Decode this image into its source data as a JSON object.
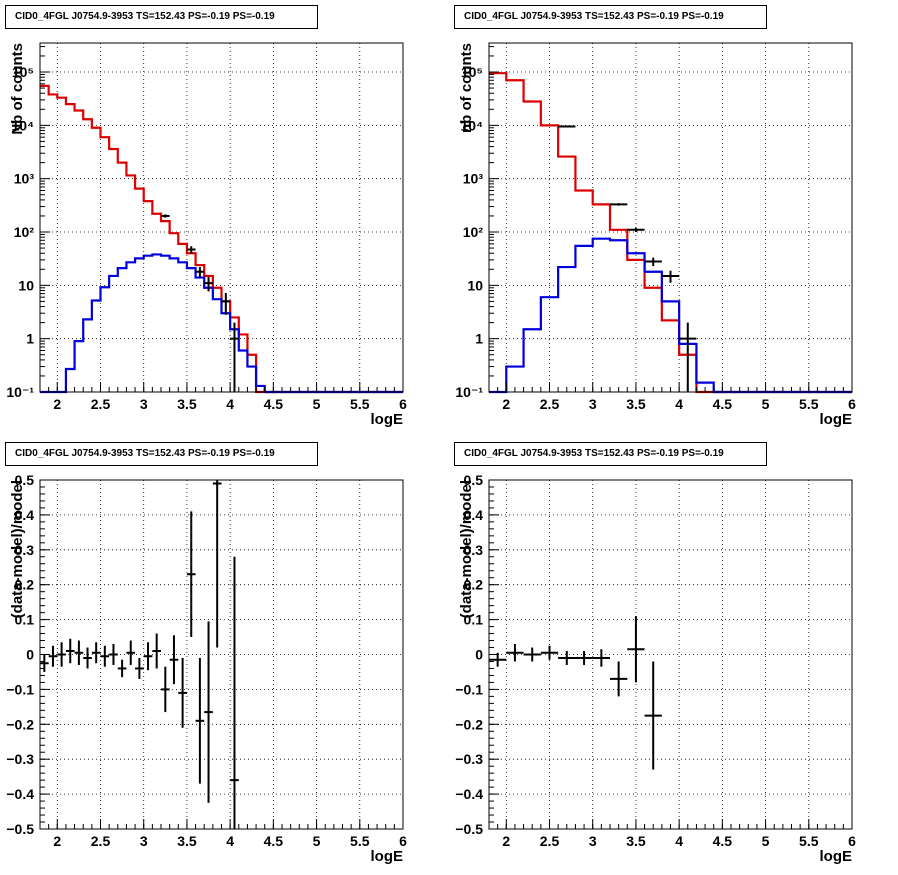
{
  "colors": {
    "model": "#dd0000",
    "source": "#0000dd",
    "data": "#000000",
    "grid": "#000000"
  },
  "chart_data": [
    {
      "type": "histogram",
      "title": "CID0_4FGL J0754.9-3953 TS=152.43 PS=-0.19 PS=-0.19",
      "xlabel": "logE",
      "ylabel": "Nb of counts",
      "xlim": [
        1.8,
        6.0
      ],
      "ylim": [
        0.1,
        350000
      ],
      "yscale": "log",
      "grid": true,
      "xticks": [
        "2",
        "2.5",
        "3",
        "3.5",
        "4",
        "4.5",
        "5",
        "5.5",
        "6"
      ],
      "yticks": [
        "10⁻¹",
        "1",
        "10",
        "10²",
        "10³",
        "10⁴",
        "10⁵"
      ],
      "bin_edges": [
        1.8,
        1.9,
        2.0,
        2.1,
        2.2,
        2.3,
        2.4,
        2.5,
        2.6,
        2.7,
        2.8,
        2.9,
        3.0,
        3.1,
        3.2,
        3.3,
        3.4,
        3.5,
        3.6,
        3.7,
        3.8,
        3.9,
        4.0,
        4.1,
        4.2,
        4.3,
        4.4,
        4.5,
        4.6,
        4.7,
        4.8,
        4.9,
        5.0,
        5.1,
        5.2,
        5.3,
        5.4,
        5.5,
        5.6,
        5.7,
        5.8,
        5.9,
        6.0
      ],
      "series": [
        {
          "name": "total model",
          "color": "#dd0000",
          "values": [
            55000,
            38000,
            33000,
            25000,
            19000,
            13000,
            9000,
            6000,
            3600,
            2000,
            1150,
            650,
            380,
            220,
            160,
            95,
            60,
            40,
            24,
            15,
            9,
            5,
            2.5,
            1.2,
            0.5,
            0.1,
            0.1,
            0.1,
            0.1,
            0.1,
            0.1,
            0.1,
            0.1,
            0.1,
            0.1,
            0.1,
            0.1,
            0.1,
            0.1,
            0.1,
            0.1,
            0.1
          ]
        },
        {
          "name": "source model",
          "color": "#0000dd",
          "values": [
            0.1,
            0.1,
            0.1,
            0.27,
            0.9,
            2.3,
            5.2,
            9.2,
            15,
            21,
            27,
            32,
            36,
            38,
            36,
            32,
            27,
            21,
            14,
            9,
            5.5,
            3,
            1.5,
            0.6,
            0.3,
            0.13,
            0.1,
            0.1,
            0.1,
            0.1,
            0.1,
            0.1,
            0.1,
            0.1,
            0.1,
            0.1,
            0.1,
            0.1,
            0.1,
            0.1,
            0.1,
            0.1
          ]
        }
      ],
      "data_points": [
        {
          "x": 3.25,
          "y": 200,
          "xerr": 0.05,
          "yerr_lo": 14,
          "yerr_hi": 14
        },
        {
          "x": 3.55,
          "y": 47,
          "xerr": 0.05,
          "yerr_lo": 7,
          "yerr_hi": 7
        },
        {
          "x": 3.65,
          "y": 18,
          "xerr": 0.05,
          "yerr_lo": 4,
          "yerr_hi": 4
        },
        {
          "x": 3.75,
          "y": 11,
          "xerr": 0.05,
          "yerr_lo": 3.3,
          "yerr_hi": 3.3
        },
        {
          "x": 3.95,
          "y": 5,
          "xerr": 0.05,
          "yerr_lo": 2.2,
          "yerr_hi": 2.2
        },
        {
          "x": 4.05,
          "y": 1,
          "xerr": 0.05,
          "yerr_lo": 0.95,
          "yerr_hi": 1
        }
      ]
    },
    {
      "type": "histogram",
      "title": "CID0_4FGL J0754.9-3953 TS=152.43 PS=-0.19 PS=-0.19",
      "xlabel": "logE",
      "ylabel": "nb of counts",
      "xlim": [
        1.8,
        6.0
      ],
      "ylim": [
        0.1,
        350000
      ],
      "yscale": "log",
      "grid": true,
      "xticks": [
        "2",
        "2.5",
        "3",
        "3.5",
        "4",
        "4.5",
        "5",
        "5.5",
        "6"
      ],
      "yticks": [
        "10⁻¹",
        "1",
        "10",
        "10²",
        "10³",
        "10⁴",
        "10⁵"
      ],
      "bin_edges": [
        1.8,
        2.0,
        2.2,
        2.4,
        2.6,
        2.8,
        3.0,
        3.2,
        3.4,
        3.6,
        3.8,
        4.0,
        4.2,
        4.4,
        4.6,
        4.8,
        5.0,
        5.2,
        5.4,
        5.6,
        5.8,
        6.0
      ],
      "series": [
        {
          "name": "total model",
          "color": "#dd0000",
          "values": [
            95000,
            70000,
            28000,
            10000,
            2600,
            600,
            330,
            110,
            30,
            9,
            2.2,
            0.5,
            0.1,
            0.1,
            0.1,
            0.1,
            0.1,
            0.1,
            0.1,
            0.1,
            0.1
          ]
        },
        {
          "name": "source model",
          "color": "#0000dd",
          "values": [
            0.1,
            0.3,
            1.5,
            6,
            22,
            55,
            75,
            70,
            40,
            18,
            5,
            0.8,
            0.15,
            0.1,
            0.1,
            0.1,
            0.1,
            0.1,
            0.1,
            0.1,
            0.1
          ]
        }
      ],
      "data_points": [
        {
          "x": 2.7,
          "y": 9500,
          "xerr": 0.1,
          "yerr_lo": 97,
          "yerr_hi": 97
        },
        {
          "x": 3.3,
          "y": 330,
          "xerr": 0.1,
          "yerr_lo": 18,
          "yerr_hi": 18
        },
        {
          "x": 3.5,
          "y": 110,
          "xerr": 0.1,
          "yerr_lo": 10,
          "yerr_hi": 10
        },
        {
          "x": 3.7,
          "y": 28,
          "xerr": 0.1,
          "yerr_lo": 5,
          "yerr_hi": 5
        },
        {
          "x": 3.9,
          "y": 15,
          "xerr": 0.1,
          "yerr_lo": 3.8,
          "yerr_hi": 3.8
        },
        {
          "x": 4.1,
          "y": 1,
          "xerr": 0.1,
          "yerr_lo": 0.95,
          "yerr_hi": 1
        }
      ]
    },
    {
      "type": "scatter",
      "title": "CID0_4FGL J0754.9-3953 TS=152.43 PS=-0.19 PS=-0.19",
      "xlabel": "logE",
      "ylabel": "(data-model)/model",
      "xlim": [
        1.8,
        6.0
      ],
      "ylim": [
        -0.5,
        0.5
      ],
      "grid": true,
      "xticks": [
        "2",
        "2.5",
        "3",
        "3.5",
        "4",
        "4.5",
        "5",
        "5.5",
        "6"
      ],
      "yticks": [
        "−0.5",
        "−0.4",
        "−0.3",
        "−0.2",
        "−0.1",
        "0",
        "0.1",
        "0.2",
        "0.3",
        "0.4",
        "0.5"
      ],
      "points": [
        {
          "x": 1.85,
          "y": -0.025,
          "xerr": 0.05,
          "yerr": 0.025
        },
        {
          "x": 1.95,
          "y": -0.005,
          "xerr": 0.05,
          "yerr": 0.03
        },
        {
          "x": 2.05,
          "y": 0.0,
          "xerr": 0.05,
          "yerr": 0.035
        },
        {
          "x": 2.15,
          "y": 0.01,
          "xerr": 0.05,
          "yerr": 0.035
        },
        {
          "x": 2.25,
          "y": 0.005,
          "xerr": 0.05,
          "yerr": 0.035
        },
        {
          "x": 2.35,
          "y": -0.01,
          "xerr": 0.05,
          "yerr": 0.03
        },
        {
          "x": 2.45,
          "y": 0.005,
          "xerr": 0.05,
          "yerr": 0.03
        },
        {
          "x": 2.55,
          "y": -0.005,
          "xerr": 0.05,
          "yerr": 0.03
        },
        {
          "x": 2.65,
          "y": 0.0,
          "xerr": 0.05,
          "yerr": 0.03
        },
        {
          "x": 2.75,
          "y": -0.04,
          "xerr": 0.05,
          "yerr": 0.025
        },
        {
          "x": 2.85,
          "y": 0.005,
          "xerr": 0.05,
          "yerr": 0.035
        },
        {
          "x": 2.95,
          "y": -0.04,
          "xerr": 0.05,
          "yerr": 0.03
        },
        {
          "x": 3.05,
          "y": -0.005,
          "xerr": 0.05,
          "yerr": 0.04
        },
        {
          "x": 3.15,
          "y": 0.01,
          "xerr": 0.05,
          "yerr": 0.05
        },
        {
          "x": 3.25,
          "y": -0.1,
          "xerr": 0.05,
          "yerr": 0.065
        },
        {
          "x": 3.35,
          "y": -0.015,
          "xerr": 0.05,
          "yerr": 0.07
        },
        {
          "x": 3.45,
          "y": -0.11,
          "xerr": 0.05,
          "yerr": 0.1
        },
        {
          "x": 3.55,
          "y": 0.23,
          "xerr": 0.05,
          "yerr": 0.18
        },
        {
          "x": 3.65,
          "y": -0.19,
          "xerr": 0.05,
          "yerr": 0.18
        },
        {
          "x": 3.75,
          "y": -0.165,
          "xerr": 0.05,
          "yerr": 0.26
        },
        {
          "x": 3.85,
          "y": 0.49,
          "xerr": 0.05,
          "yerr": 0.47
        },
        {
          "x": 4.05,
          "y": -0.36,
          "xerr": 0.05,
          "yerr": 0.64
        }
      ]
    },
    {
      "type": "scatter",
      "title": "CID0_4FGL J0754.9-3953 TS=152.43 PS=-0.19 PS=-0.19",
      "xlabel": "logE",
      "ylabel": "(data-model)/model",
      "xlim": [
        1.8,
        6.0
      ],
      "ylim": [
        -0.5,
        0.5
      ],
      "grid": true,
      "xticks": [
        "2",
        "2.5",
        "3",
        "3.5",
        "4",
        "4.5",
        "5",
        "5.5",
        "6"
      ],
      "yticks": [
        "−0.5",
        "−0.4",
        "−0.3",
        "−0.2",
        "−0.1",
        "0",
        "0.1",
        "0.2",
        "0.3",
        "0.4",
        "0.5"
      ],
      "points": [
        {
          "x": 1.9,
          "y": -0.015,
          "xerr": 0.1,
          "yerr": 0.02
        },
        {
          "x": 2.1,
          "y": 0.005,
          "xerr": 0.1,
          "yerr": 0.025
        },
        {
          "x": 2.3,
          "y": 0.0,
          "xerr": 0.1,
          "yerr": 0.02
        },
        {
          "x": 2.5,
          "y": 0.005,
          "xerr": 0.1,
          "yerr": 0.02
        },
        {
          "x": 2.7,
          "y": -0.01,
          "xerr": 0.1,
          "yerr": 0.02
        },
        {
          "x": 2.9,
          "y": -0.01,
          "xerr": 0.1,
          "yerr": 0.02
        },
        {
          "x": 3.1,
          "y": -0.01,
          "xerr": 0.1,
          "yerr": 0.025
        },
        {
          "x": 3.3,
          "y": -0.07,
          "xerr": 0.1,
          "yerr": 0.05
        },
        {
          "x": 3.5,
          "y": 0.015,
          "xerr": 0.1,
          "yerr": 0.095
        },
        {
          "x": 3.7,
          "y": -0.175,
          "xerr": 0.1,
          "yerr": 0.155
        }
      ]
    }
  ]
}
